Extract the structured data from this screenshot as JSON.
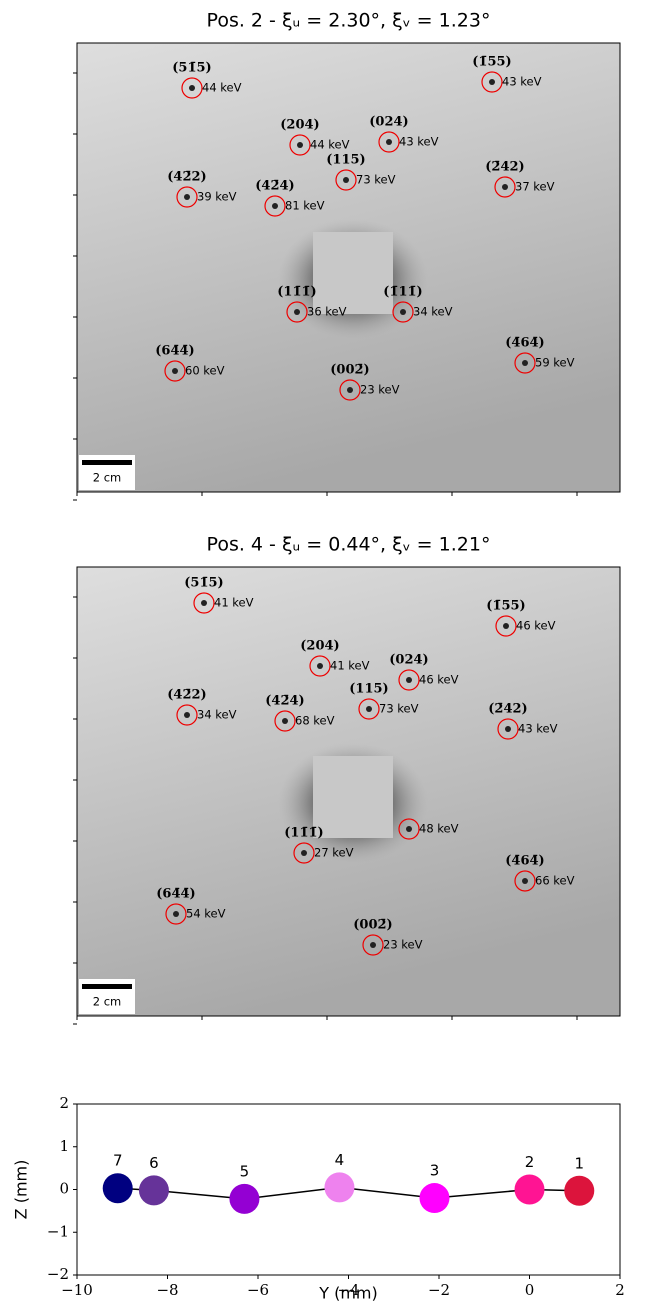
{
  "panels": [
    {
      "title": "Pos. 2 - ξᵤ = 2.30°, ξᵥ = 1.23°",
      "scale_bar": "2 cm",
      "spots": [
        {
          "label": "(51̄5)",
          "energy": "44 keV"
        },
        {
          "label": "(1̄55)",
          "energy": "43 keV"
        },
        {
          "label": "(204)",
          "energy": "44 keV"
        },
        {
          "label": "(024)",
          "energy": "43 keV"
        },
        {
          "label": "(115)",
          "energy": "73 keV"
        },
        {
          "label": "(42̄2)",
          "energy": "39 keV"
        },
        {
          "label": "(42̄4)",
          "energy": "81 keV"
        },
        {
          "label": "(2̄42)",
          "energy": "37 keV"
        },
        {
          "label": "(11̄1̄)",
          "energy": "36 keV"
        },
        {
          "label": "(1̄11̄)",
          "energy": "34 keV"
        },
        {
          "label": "(64̄4̄)",
          "energy": "60 keV"
        },
        {
          "label": "(002̄)",
          "energy": "23 keV"
        },
        {
          "label": "(4̄64̄)",
          "energy": "59 keV"
        }
      ]
    },
    {
      "title": "Pos. 4 - ξᵤ = 0.44°, ξᵥ = 1.21°",
      "scale_bar": "2 cm",
      "spots": [
        {
          "label": "(51̄5)",
          "energy": "41 keV"
        },
        {
          "label": "(1̄55)",
          "energy": "46 keV"
        },
        {
          "label": "(204)",
          "energy": "41 keV"
        },
        {
          "label": "(024)",
          "energy": "46 keV"
        },
        {
          "label": "(115)",
          "energy": "73 keV"
        },
        {
          "label": "(42̄2)",
          "energy": "34 keV"
        },
        {
          "label": "(42̄4)",
          "energy": "68 keV"
        },
        {
          "label": "(2̄42)",
          "energy": "43 keV"
        },
        {
          "energy": "48 keV"
        },
        {
          "label": "(11̄1̄)",
          "energy": "27 keV"
        },
        {
          "label": "(4̄64̄)",
          "energy": "66 keV"
        },
        {
          "label": "(64̄4̄)",
          "energy": "54 keV"
        },
        {
          "label": "(002̄)",
          "energy": "23 keV"
        }
      ]
    }
  ],
  "chart_data": {
    "type": "scatter",
    "xlabel": "Y (mm)",
    "ylabel": "Z (mm)",
    "point_labels": [
      "1",
      "2",
      "3",
      "4",
      "5",
      "6",
      "7"
    ],
    "x": [
      1.1,
      0.0,
      -2.1,
      -4.2,
      -6.3,
      -8.3,
      -9.1
    ],
    "values": [
      -0.03,
      0.0,
      -0.2,
      0.05,
      -0.22,
      -0.02,
      0.03
    ],
    "colors": [
      "#dc143c",
      "#ff1493",
      "#ff00ff",
      "#ee82ee",
      "#9400d3",
      "#663399",
      "#000080"
    ],
    "line_color": "#000000",
    "xlim": [
      -10,
      2
    ],
    "xticks": [
      {
        "value": -10,
        "label": "−10"
      },
      {
        "value": -8,
        "label": "−8"
      },
      {
        "value": -6,
        "label": "−6"
      },
      {
        "value": -4,
        "label": "−4"
      },
      {
        "value": -2,
        "label": "−2"
      },
      0,
      2
    ],
    "ylim": [
      -2,
      2
    ],
    "yticks": [
      {
        "value": -2,
        "label": "−2"
      },
      {
        "value": -1,
        "label": "−1"
      },
      0,
      1,
      2
    ]
  }
}
